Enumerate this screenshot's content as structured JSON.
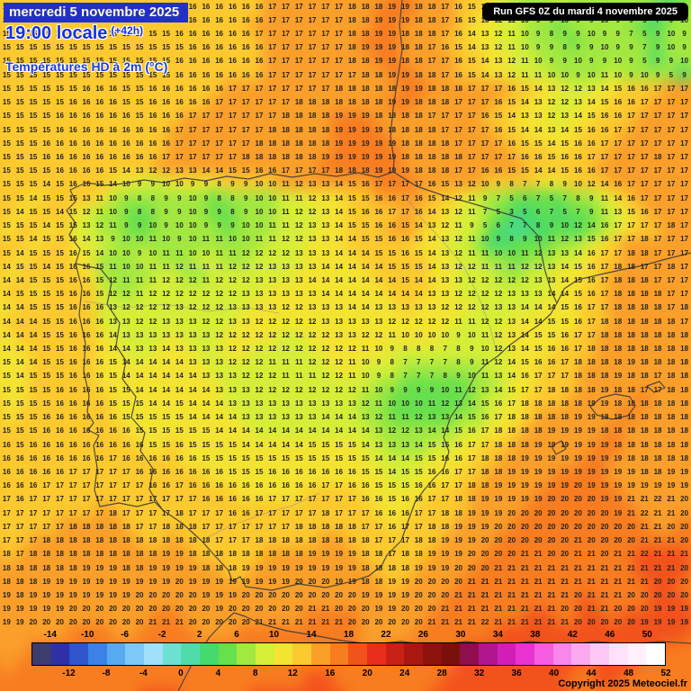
{
  "header": {
    "date": "mercredi 5 novembre 2025",
    "time": "19:00 locale",
    "offset": "(+42h)",
    "parameter": "Températures HD à 2m (°C)",
    "run_info": "Run GFS 0Z du mardi 4 novembre 2025"
  },
  "footer": {
    "copyright": "Copyright 2025 Meteociel.fr"
  },
  "map": {
    "grid_columns": 52,
    "grid_rows": 46,
    "units": "°C",
    "palette": [
      {
        "max": 0,
        "color": "#74c8f0"
      },
      {
        "max": 2,
        "color": "#5ce0cf"
      },
      {
        "max": 4,
        "color": "#46dca6"
      },
      {
        "max": 6,
        "color": "#46d96e"
      },
      {
        "max": 8,
        "color": "#66e04c"
      },
      {
        "max": 10,
        "color": "#a2e840"
      },
      {
        "max": 12,
        "color": "#d6ee38"
      },
      {
        "max": 14,
        "color": "#f4e432"
      },
      {
        "max": 16,
        "color": "#fcc92e"
      },
      {
        "max": 18,
        "color": "#fa9f2a"
      },
      {
        "max": 20,
        "color": "#f87c20"
      },
      {
        "max": 22,
        "color": "#f2521c"
      },
      {
        "max": 99,
        "color": "#e62e1a"
      }
    ],
    "temperature_grid": [
      "15 15 15 15 15 15 15 15 15 15 15 15 15 15 16 16 16 16 16 16 17 17 17 17 17 17 18 18 18 19 19 18 18 17 16 15 14 12 10 9 10 11 9 9 10 9 9 10 9 5 7 9",
      "15 15 15 15 15 15 15 15 15 15 15 15 15 16 16 16 16 16 16 16 17 17 17 17 17 17 18 18 19 19 19 18 18 17 16 15 13 12 11 10 9 9 10 9 9 10 9 9 5 7 9 10",
      "15 15 15 15 15 15 15 15 15 15 15 15 15 16 16 16 16 16 16 17 17 17 17 17 17 17 18 18 19 19 18 18 18 17 16 14 13 12 11 10 9 8 9 9 10 9 9 7 5 9 10 9",
      "15 15 15 15 15 15 15 15 15 15 15 15 15 15 16 16 16 16 16 16 17 17 17 17 17 17 18 19 19 19 18 18 17 16 15 14 13 12 11 10 9 9 8 9 9 10 9 9 7 9 10 9",
      "15 15 15 15 15 15 15 15 15 15 15 15 15 16 16 16 16 16 16 16 17 17 17 17 17 17 18 18 19 19 18 18 17 17 16 15 14 13 12 11 10 9 9 10 9 9 10 9 5 9 9 10",
      "15 15 15 15 15 15 15 15 15 15 15 15 15 16 16 16 16 16 16 16 17 17 17 17 17 17 17 18 18 19 19 18 18 17 16 15 14 13 12 11 11 10 10 9 10 11 10 9 10 9 5 9",
      "15 15 15 15 15 15 16 16 16 15 15 16 16 16 16 16 16 17 17 17 17 17 17 17 17 18 18 18 18 18 19 19 18 18 18 17 17 17 16 15 14 13 12 12 13 14 15 16 16 17 17 17",
      "15 15 15 15 15 16 16 16 16 15 15 16 16 16 16 16 17 17 17 17 17 17 18 18 18 18 18 18 18 19 19 18 18 18 17 17 17 16 15 14 13 12 12 13 14 15 16 16 17 17 17 17",
      "15 15 15 15 16 16 16 16 16 16 15 16 16 16 17 17 17 17 17 17 17 18 18 18 18 19 19 19 18 18 18 18 17 17 17 17 16 15 14 13 13 12 13 14 15 16 16 17 17 17 17 17",
      "15 15 15 15 16 16 16 16 16 16 16 16 16 17 17 17 17 17 17 17 18 18 18 18 18 19 19 19 19 18 18 18 18 17 17 17 17 16 15 14 14 13 14 15 16 16 17 17 17 17 17 17",
      "15 15 15 16 16 16 16 16 16 16 16 16 16 17 17 17 17 17 17 18 18 18 18 18 18 19 19 19 19 19 18 18 18 18 17 17 17 17 16 15 15 14 15 16 16 17 17 17 17 17 17 17",
      "15 15 15 16 16 16 16 16 16 16 16 16 17 17 17 17 17 17 18 18 18 18 18 18 19 19 19 19 19 19 18 18 18 18 18 17 17 17 17 16 16 15 16 16 17 17 17 17 17 18 17 17",
      "15 15 15 15 16 16 16 16 15 14 13 12 12 13 13 14 14 15 15 16 16 17 17 17 17 18 18 18 19 19 19 18 18 18 17 17 16 16 15 15 14 14 15 16 16 17 17 17 17 17 17 17",
      "15 15 15 14 15 16 16 15 14 10 9 9 10 10 9 9 8 9 9 10 10 11 12 13 13 14 15 16 17 17 17 17 16 15 13 12 10 9 8 7 7 8 9 10 12 14 16 17 17 17 17 17",
      "15 15 14 15 15 15 13 11 10 9 8 8 9 9 10 9 8 8 9 10 10 11 11 12 13 14 15 15 16 16 17 16 15 14 12 11 9 7 5 6 7 5 7 8 9 11 14 16 17 17 17 17",
      "15 14 15 15 14 15 12 11 10 9 8 8 9 9 10 9 9 8 9 10 10 11 12 12 13 14 15 16 16 17 17 16 14 13 12 11 7 5 3 5 6 7 5 7 9 11 13 15 16 17 17 17",
      "15 15 15 14 15 15 13 12 11 9 9 10 9 10 10 9 9 9 10 10 11 11 12 13 13 14 15 15 16 16 15 14 13 12 11 9 5 6 7 7 8 9 10 12 14 16 17 17 17 17 18 17",
      "15 15 14 15 15 16 14 13 9 10 10 11 10 9 10 11 11 10 10 11 11 12 12 13 13 14 14 15 15 16 16 15 14 13 12 11 10 9 8 9 10 11 12 13 15 16 17 17 18 17 17 17",
      "15 14 15 15 15 16 15 14 10 10 9 10 11 11 10 10 11 11 12 12 12 12 13 13 13 14 14 14 15 15 16 15 14 13 12 11 11 10 10 11 12 13 13 14 16 17 17 18 18 17 17 17",
      "14 15 15 14 15 16 16 15 11 10 10 11 11 12 11 11 11 12 12 12 13 13 13 13 14 14 14 14 14 15 15 15 14 13 12 12 11 11 11 12 12 13 14 15 16 17 18 18 17 17 18 17",
      "14 14 15 15 15 16 16 15 12 11 11 11 12 12 12 11 12 12 12 13 13 13 13 14 14 14 14 14 14 14 15 14 14 13 13 12 12 12 12 12 13 13 14 15 16 17 18 18 18 17 17 17",
      "14 15 15 15 15 16 16 15 12 12 11 12 12 12 12 12 12 12 13 13 13 13 13 13 14 14 14 14 14 14 14 14 13 13 12 12 12 12 13 13 13 14 14 15 16 17 18 18 18 18 17 17",
      "14 14 15 15 15 16 16 16 13 12 12 12 12 13 12 12 12 13 13 13 13 12 12 13 13 13 14 14 13 13 13 13 13 12 12 12 12 13 13 14 14 14 15 16 17 17 18 18 18 18 17 18",
      "14 14 14 15 15 16 16 16 13 13 12 12 13 13 13 12 12 13 13 12 12 12 12 12 13 13 13 13 13 12 12 12 12 12 11 11 12 12 13 14 14 15 15 16 17 18 18 18 18 18 18 17",
      "14 14 14 15 15 16 16 16 14 13 13 13 13 13 13 13 12 12 12 12 12 12 12 12 12 13 13 12 12 11 10 10 10 10 9 10 11 12 13 14 15 15 16 17 17 18 18 18 18 18 18 18",
      "14 14 14 15 15 16 16 16 14 14 13 13 14 13 13 13 13 12 12 12 12 12 12 12 12 12 12 11 10 9 8 8 8 7 8 9 10 12 13 14 15 16 16 17 18 18 18 18 18 18 18 18",
      "15 14 14 15 15 16 16 16 15 14 14 14 14 14 13 13 13 12 12 12 11 11 11 12 12 12 11 10 9 8 7 7 7 7 8 9 11 12 14 15 16 16 17 18 18 18 18 19 18 18 18 18",
      "15 14 15 15 15 16 16 16 15 14 14 14 14 14 14 13 13 13 12 12 12 11 11 11 12 12 11 10 9 8 7 7 7 8 9 10 11 13 14 16 17 17 17 18 18 18 19 18 18 17 18 18",
      "15 15 15 15 16 16 16 16 15 15 14 14 14 14 14 14 13 13 13 12 12 12 12 12 12 12 12 11 10 9 9 9 9 10 11 12 13 14 15 17 17 18 18 18 18 19 18 18 17 17 18 18",
      "15 15 15 15 16 16 16 16 15 15 15 14 14 15 14 14 14 13 13 13 13 13 13 13 13 13 13 12 11 10 10 10 11 12 13 14 15 16 17 18 18 18 18 18 19 19 18 18 18 18 18 18",
      "15 15 15 16 16 16 16 16 16 15 15 15 15 15 14 14 14 14 13 13 13 13 13 13 14 14 14 13 12 11 11 12 13 13 14 15 16 17 18 18 18 18 18 19 19 18 18 18 18 18 18 18",
      "15 15 15 16 16 16 16 16 16 16 15 15 15 15 15 15 14 14 14 14 14 14 14 14 14 14 14 14 13 12 12 13 14 14 15 16 17 18 18 18 18 19 19 19 19 18 18 18 18 18 18 18",
      "16 15 16 16 16 16 16 16 16 16 16 15 15 16 15 15 15 15 14 14 14 14 14 15 15 15 15 14 13 13 13 14 15 15 16 17 17 18 18 18 19 19 19 19 19 19 18 18 18 18 18 18",
      "16 16 16 16 16 16 16 16 17 16 16 16 16 16 16 15 15 15 15 15 15 15 15 15 15 15 15 15 14 14 14 15 15 16 16 17 18 18 18 19 19 19 19 19 19 19 19 18 18 18 18 18",
      "16 16 16 16 16 17 17 17 17 17 16 16 16 16 16 16 16 15 15 15 16 16 16 16 16 16 16 15 15 14 15 15 16 16 17 17 18 18 19 19 19 19 19 19 19 19 19 19 18 18 19 19",
      "16 16 16 17 17 17 17 17 17 17 17 16 16 17 16 16 16 16 16 16 16 16 16 16 17 17 16 16 15 15 15 16 16 17 17 18 18 19 19 19 19 19 19 20 19 19 19 19 19 19 19 19",
      "17 16 17 17 17 17 17 17 17 17 17 17 17 17 17 16 16 16 16 16 17 17 17 17 17 17 17 16 16 15 16 16 17 17 18 18 19 19 19 19 19 20 20 20 20 19 19 21 21 22 21 20",
      "17 17 17 17 17 17 17 17 18 17 17 17 17 18 17 17 17 16 16 17 17 17 17 17 18 17 17 17 16 16 16 17 17 18 18 19 19 19 20 20 20 20 20 20 20 20 19 21 22 21 21 20",
      "17 17 17 17 17 18 18 18 18 18 17 17 18 18 18 17 17 17 17 17 17 17 18 18 18 18 18 17 17 16 17 17 18 18 19 19 19 20 20 20 20 20 20 20 20 20 20 20 21 21 20 20",
      "17 17 17 18 18 18 18 18 18 18 18 18 18 18 18 18 17 17 17 18 18 18 18 18 18 18 18 18 17 17 17 18 18 19 19 19 20 20 20 20 20 20 20 21 20 20 20 20 21 21 21 20",
      "18 17 18 18 18 18 18 18 18 18 18 18 19 19 18 18 18 18 18 18 18 18 18 19 19 19 19 18 18 17 18 18 19 19 19 20 20 20 20 21 21 20 20 21 21 20 21 21 22 21 21 21",
      "18 18 18 18 18 18 19 19 19 18 18 19 19 19 19 18 18 18 19 19 19 19 19 19 19 19 19 18 18 18 18 19 19 19 20 20 20 21 21 21 21 21 21 21 21 21 21 21 21 21 21 20",
      "18 18 18 19 19 19 19 19 19 19 19 19 19 20 19 19 19 19 19 19 19 19 20 20 20 19 19 18 18 19 19 20 20 20 20 21 21 21 21 21 21 21 21 21 21 21 21 21 21 20 20 20",
      "19 18 19 19 19 19 19 19 19 19 20 20 20 20 20 19 19 19 20 20 20 20 20 20 20 20 20 19 19 19 19 20 20 20 21 21 21 21 21 21 21 21 21 20 21 21 21 20 20 20 20 20",
      "19 19 19 19 19 20 20 20 20 20 20 20 20 20 20 20 19 20 20 20 20 20 20 21 21 20 20 20 19 19 20 20 20 21 21 21 21 21 21 21 21 21 20 20 21 21 20 20 20 19 19 19",
      "19 19 20 20 20 20 20 20 20 20 20 21 21 21 20 20 20 20 20 21 21 21 21 21 21 21 20 20 20 20 20 20 21 21 21 21 22 21 21 21 21 21 21 20 20 20 20 20 19 19 19 19"
    ]
  },
  "legend": {
    "min": -16,
    "max": 52,
    "colors": [
      "#3c3c6e",
      "#2f2fa8",
      "#2f55cd",
      "#3c82e6",
      "#58aaf0",
      "#7cc8f7",
      "#a0e0fa",
      "#6ee0d2",
      "#50dcaa",
      "#46d96e",
      "#66e04c",
      "#a2e840",
      "#d6ee38",
      "#f4e432",
      "#fcc92e",
      "#fa9f2a",
      "#f87c20",
      "#f2521c",
      "#e62e1a",
      "#c82014",
      "#a81810",
      "#8c120c",
      "#7a100a",
      "#8e0e4e",
      "#b01690",
      "#d21eb8",
      "#ea32d2",
      "#f55ce0",
      "#f986ea",
      "#fcaaf0",
      "#fdc8f5",
      "#fee2fa",
      "#fff0fc",
      "#ffffff"
    ],
    "ticks_top": [
      -14,
      -10,
      -6,
      -2,
      2,
      6,
      10,
      14,
      18,
      22,
      26,
      30,
      34,
      38,
      42,
      46,
      50
    ],
    "ticks_bottom": [
      -12,
      -8,
      -4,
      0,
      4,
      8,
      12,
      16,
      20,
      24,
      28,
      32,
      36,
      40,
      44,
      48,
      52
    ]
  }
}
